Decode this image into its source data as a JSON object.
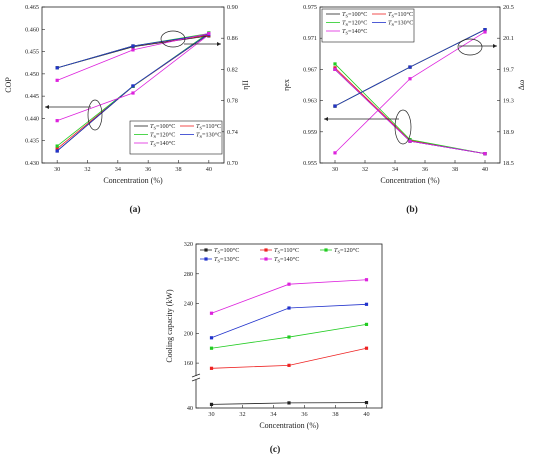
{
  "legend_template": {
    "prefix": "T",
    "subscript": "S",
    "suffix": "°C"
  },
  "chart_data": [
    {
      "type": "line",
      "panel_label": "(a)",
      "xlabel": "Concentration (%)",
      "ylabel_left": "COP",
      "ylabel_right": "ηII",
      "x": [
        30,
        35,
        40
      ],
      "xticks": [
        30,
        32,
        34,
        36,
        38,
        40
      ],
      "xlim": [
        29,
        41
      ],
      "ylim_left": [
        0.43,
        0.465
      ],
      "yticks_left": [
        0.43,
        0.435,
        0.44,
        0.445,
        0.45,
        0.455,
        0.46,
        0.465
      ],
      "ylim_right": [
        0.7,
        0.9
      ],
      "yticks_right": [
        0.7,
        0.74,
        0.78,
        0.82,
        0.86,
        0.9
      ],
      "legend_position": "bottom-right",
      "series_left": [
        {
          "name": "100",
          "color": "#222222",
          "values": [
            0.4327,
            0.4472,
            0.4589
          ]
        },
        {
          "name": "110",
          "color": "#ee2222",
          "values": [
            0.4332,
            0.4472,
            0.459
          ]
        },
        {
          "name": "120",
          "color": "#22cc22",
          "values": [
            0.4338,
            0.4472,
            0.4592
          ]
        },
        {
          "name": "130",
          "color": "#2233cc",
          "values": [
            0.4327,
            0.4473,
            0.459
          ]
        },
        {
          "name": "140",
          "color": "#dd22dd",
          "values": [
            0.4395,
            0.4457,
            0.4588
          ]
        }
      ],
      "series_right": [
        {
          "name": "100",
          "color": "#222222",
          "values": [
            0.822,
            0.849,
            0.863
          ]
        },
        {
          "name": "110",
          "color": "#ee2222",
          "values": [
            0.822,
            0.85,
            0.864
          ]
        },
        {
          "name": "120",
          "color": "#22cc22",
          "values": [
            0.822,
            0.85,
            0.866
          ]
        },
        {
          "name": "130",
          "color": "#2233cc",
          "values": [
            0.822,
            0.85,
            0.865
          ]
        },
        {
          "name": "140",
          "color": "#dd22dd",
          "values": [
            0.806,
            0.845,
            0.866
          ]
        }
      ]
    },
    {
      "type": "line",
      "panel_label": "(b)",
      "xlabel": "Concentration (%)",
      "ylabel_left": "ηex",
      "ylabel_right": "Δω",
      "x": [
        30,
        35,
        40
      ],
      "xticks": [
        30,
        32,
        34,
        36,
        38,
        40
      ],
      "xlim": [
        29,
        41
      ],
      "ylim_left": [
        0.955,
        0.975
      ],
      "yticks_left": [
        0.955,
        0.959,
        0.963,
        0.967,
        0.971,
        0.975
      ],
      "ylim_right": [
        18.5,
        20.5
      ],
      "yticks_right": [
        18.5,
        18.9,
        19.3,
        19.7,
        20.1,
        20.5
      ],
      "legend_position": "top-left",
      "series_left": [
        {
          "name": "100",
          "color": "#222222",
          "values": [
            0.967,
            0.9578,
            0.9562
          ]
        },
        {
          "name": "110",
          "color": "#ee2222",
          "values": [
            0.9672,
            0.9579,
            0.9562
          ]
        },
        {
          "name": "120",
          "color": "#22cc22",
          "values": [
            0.9677,
            0.958,
            0.9562
          ]
        },
        {
          "name": "130",
          "color": "#2233cc",
          "values": [
            0.967,
            0.9578,
            0.9562
          ]
        },
        {
          "name": "140",
          "color": "#dd22dd",
          "values": [
            0.967,
            0.9578,
            0.9562
          ]
        }
      ],
      "series_right": [
        {
          "name": "100",
          "color": "#222222",
          "values": [
            19.23,
            19.73,
            20.21
          ]
        },
        {
          "name": "110",
          "color": "#ee2222",
          "values": [
            19.23,
            19.73,
            20.21
          ]
        },
        {
          "name": "120",
          "color": "#22cc22",
          "values": [
            19.23,
            19.73,
            20.21
          ]
        },
        {
          "name": "130",
          "color": "#2233cc",
          "values": [
            19.23,
            19.73,
            20.21
          ]
        },
        {
          "name": "140",
          "color": "#dd22dd",
          "values": [
            18.63,
            19.58,
            20.18
          ]
        }
      ]
    },
    {
      "type": "line",
      "panel_label": "(c)",
      "xlabel": "Concentration (%)",
      "ylabel": "Cooling capacity (kW)",
      "x": [
        30,
        35,
        40
      ],
      "xticks": [
        30,
        32,
        34,
        36,
        38,
        40
      ],
      "xlim": [
        29,
        41
      ],
      "ylim": [
        40,
        320
      ],
      "yticks": [
        40,
        160,
        200,
        240,
        280,
        320
      ],
      "axis_break": [
        40,
        140
      ],
      "legend_position": "top",
      "series": [
        {
          "name": "100",
          "color": "#222222",
          "values": [
            52,
            57,
            58
          ]
        },
        {
          "name": "110",
          "color": "#ee2222",
          "values": [
            153,
            157,
            180
          ]
        },
        {
          "name": "120",
          "color": "#22cc22",
          "values": [
            180,
            195,
            212
          ]
        },
        {
          "name": "130",
          "color": "#2233cc",
          "values": [
            194,
            234,
            239
          ]
        },
        {
          "name": "140",
          "color": "#dd22dd",
          "values": [
            227,
            266,
            272
          ]
        }
      ]
    }
  ]
}
